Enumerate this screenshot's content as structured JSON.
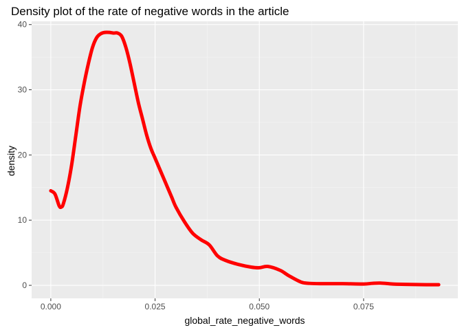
{
  "chart_data": {
    "type": "line",
    "title": "Density plot  of the rate of negative words in the article",
    "xlabel": "global_rate_negative_words",
    "ylabel": "density",
    "xlim": [
      -0.0046,
      0.0976
    ],
    "ylim": [
      -2.0,
      40.5
    ],
    "x_ticks": [
      0.0,
      0.025,
      0.05,
      0.075
    ],
    "x_tick_labels": [
      "0.000",
      "0.025",
      "0.050",
      "0.075"
    ],
    "y_ticks": [
      0,
      10,
      20,
      30,
      40
    ],
    "y_tick_labels": [
      "0",
      "10",
      "20",
      "30",
      "40"
    ],
    "grid": true,
    "legend": "none",
    "colors": {
      "panel_background": "#ebebeb",
      "grid_major": "#ffffff",
      "grid_minor": "#f5f5f5",
      "line": "#ff0000",
      "tick": "#333333"
    },
    "series": [
      {
        "x": [
          0.0,
          0.001,
          0.002,
          0.0025,
          0.003,
          0.004,
          0.005,
          0.006,
          0.007,
          0.008,
          0.009,
          0.01,
          0.011,
          0.012,
          0.013,
          0.014,
          0.015,
          0.016,
          0.017,
          0.018,
          0.019,
          0.02,
          0.021,
          0.022,
          0.023,
          0.024,
          0.025,
          0.026,
          0.027,
          0.028,
          0.029,
          0.03,
          0.032,
          0.034,
          0.036,
          0.038,
          0.04,
          0.042,
          0.045,
          0.048,
          0.05,
          0.052,
          0.055,
          0.057,
          0.06,
          0.062,
          0.065,
          0.07,
          0.075,
          0.077,
          0.079,
          0.082,
          0.085,
          0.09,
          0.093
        ],
        "y": [
          14.5,
          14.0,
          12.2,
          12.0,
          12.5,
          15.0,
          18.5,
          23.0,
          27.5,
          31.0,
          34.0,
          36.5,
          38.0,
          38.6,
          38.8,
          38.8,
          38.7,
          38.7,
          38.2,
          36.5,
          34.0,
          31.0,
          28.0,
          25.5,
          23.0,
          21.0,
          19.5,
          18.0,
          16.5,
          15.0,
          13.5,
          12.0,
          9.8,
          8.0,
          7.0,
          6.2,
          4.5,
          3.8,
          3.2,
          2.8,
          2.7,
          2.9,
          2.3,
          1.5,
          0.5,
          0.3,
          0.25,
          0.25,
          0.2,
          0.3,
          0.35,
          0.2,
          0.15,
          0.1,
          0.1
        ]
      }
    ]
  }
}
